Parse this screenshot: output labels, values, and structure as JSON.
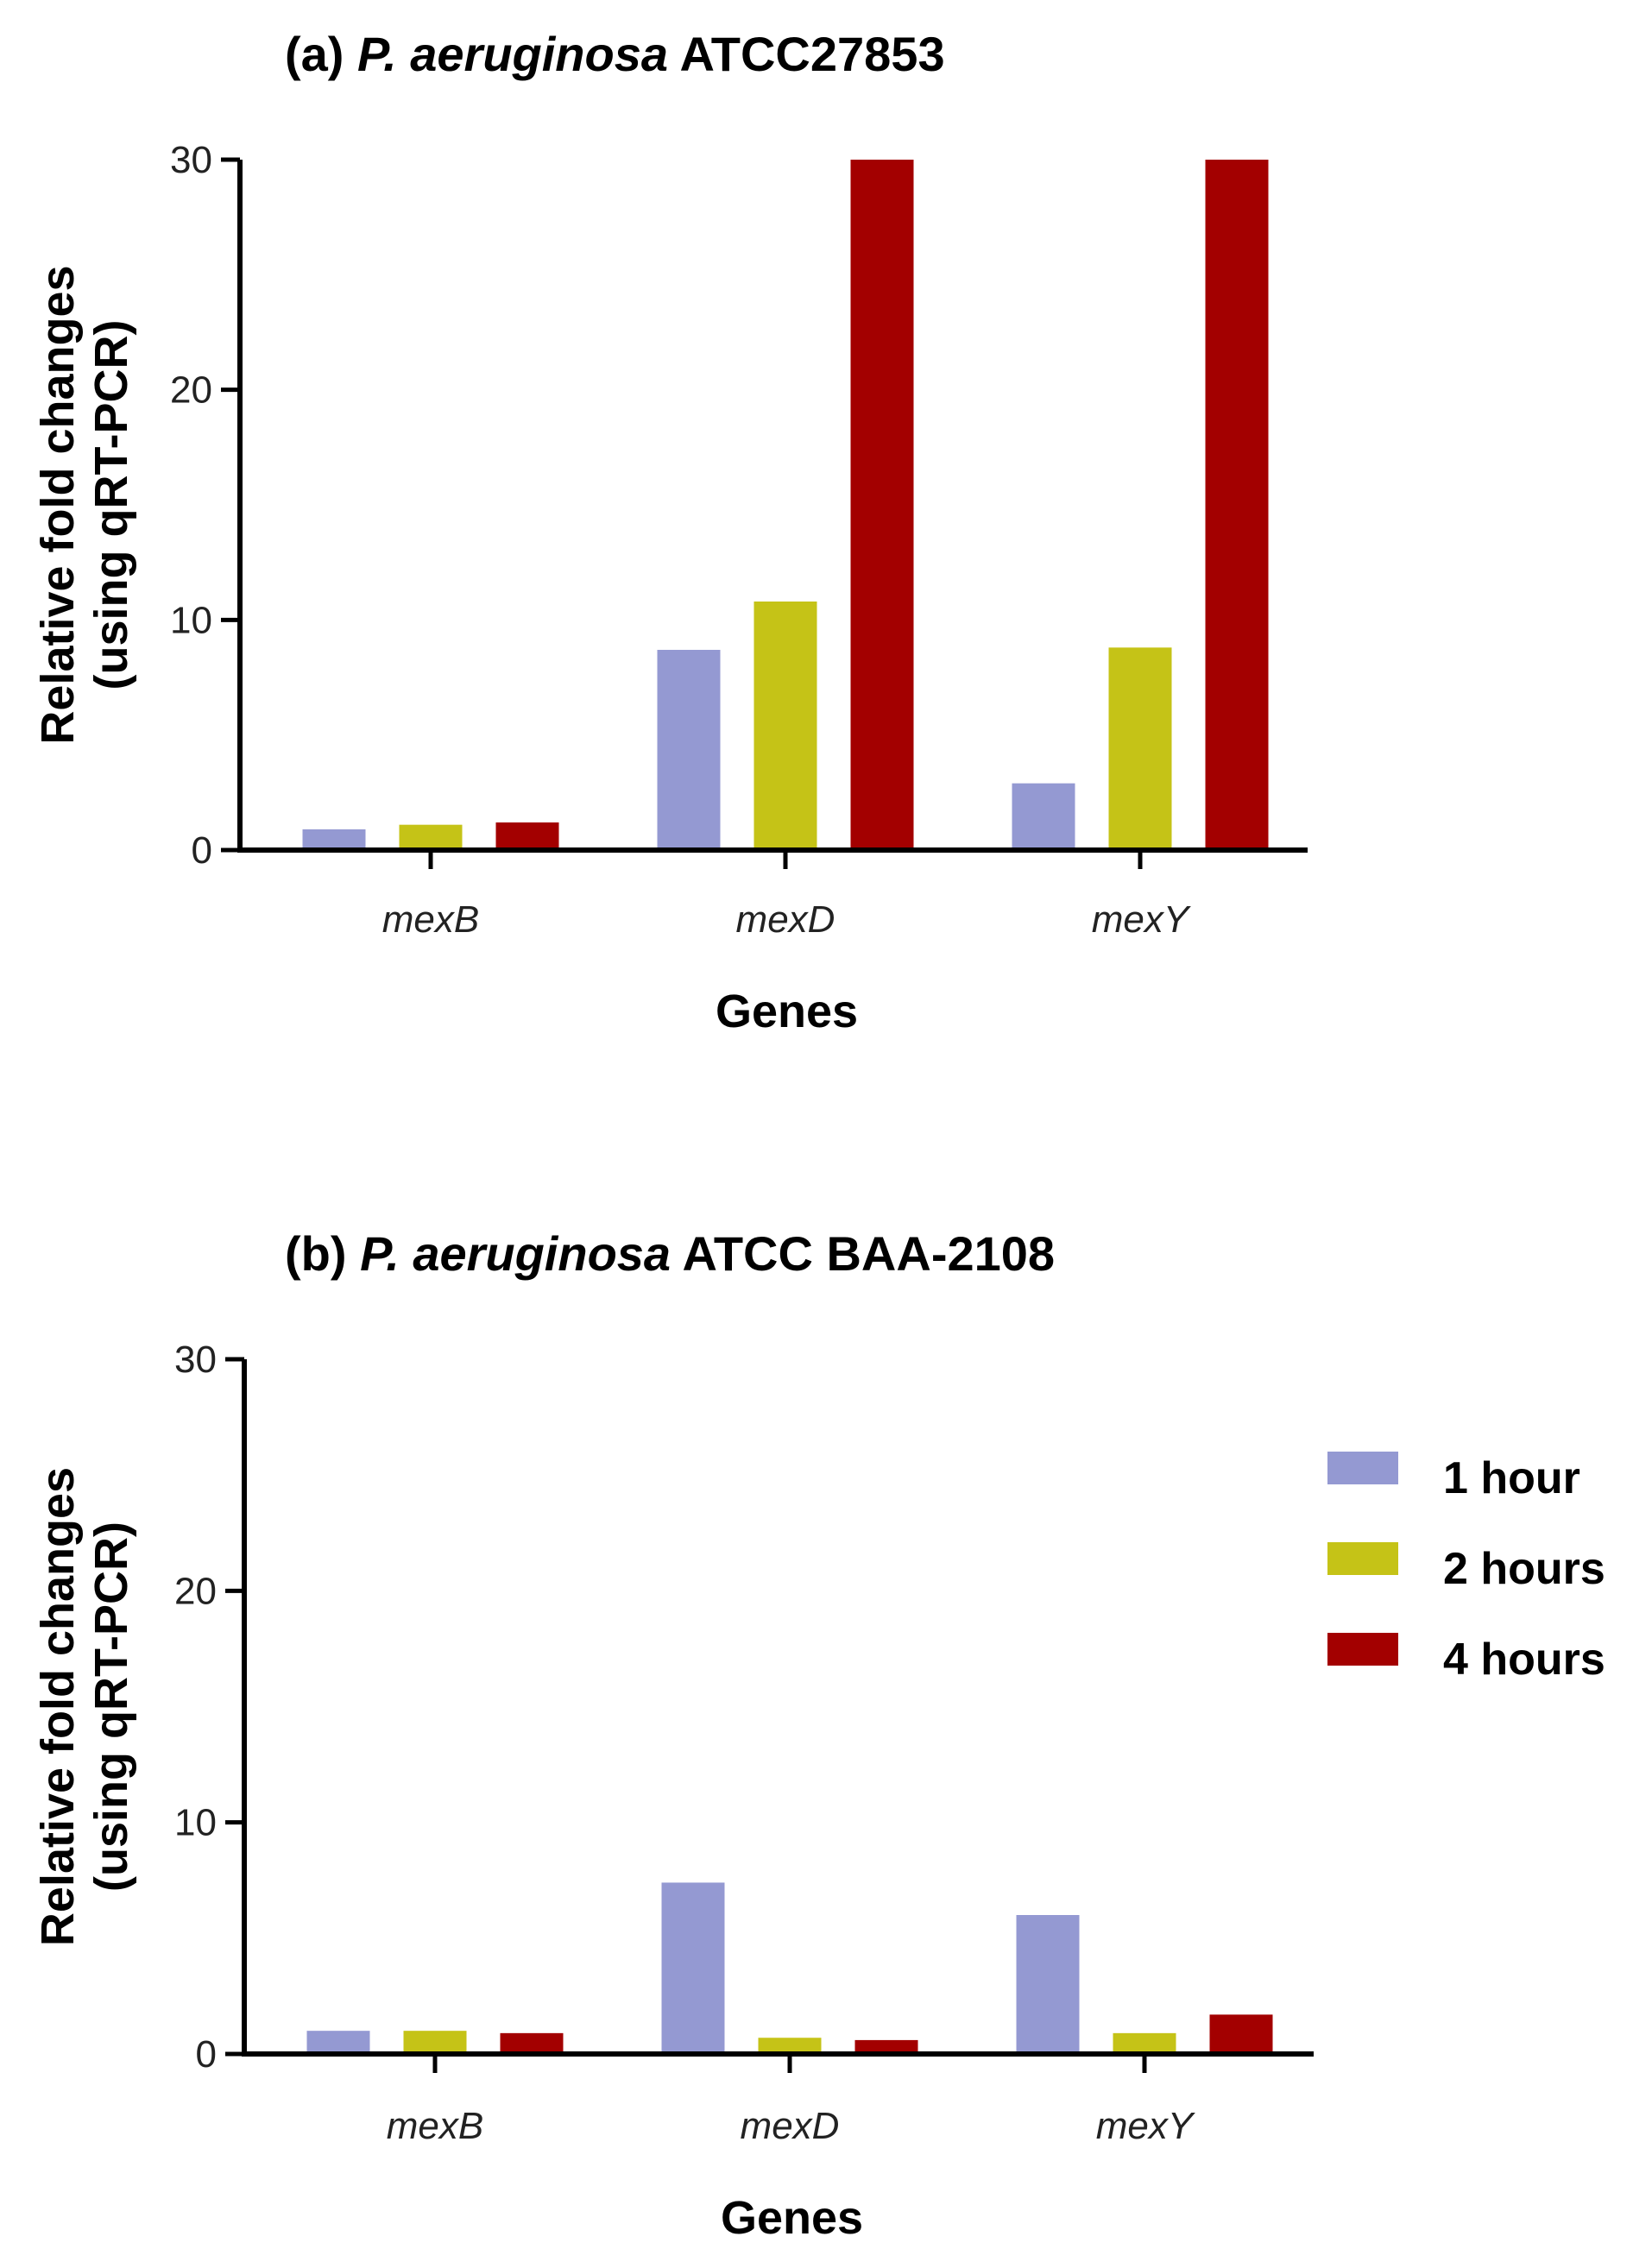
{
  "colors": {
    "1 hour": "#9499d2",
    "2 hours": "#c5c317",
    "4 hours": "#a30000"
  },
  "legend": [
    "1 hour",
    "2 hours",
    "4 hours"
  ],
  "chart_data": [
    {
      "type": "bar",
      "title_prefix": "(a)",
      "title_italic": "P. aeruginosa",
      "title_suffix": "ATCC27853",
      "title": "(a) P. aeruginosa ATCC27853",
      "xlabel": "Genes",
      "ylabel": "Relative fold changes\n(using qRT-PCR)",
      "ylabel_line1": "Relative fold changes",
      "ylabel_line2": "(using qRT-PCR)",
      "ylim": [
        0,
        30
      ],
      "yticks": [
        0,
        10,
        20,
        30
      ],
      "categories": [
        "mexB",
        "mexD",
        "mexY"
      ],
      "series": [
        {
          "name": "1 hour",
          "values": [
            0.9,
            8.7,
            2.9
          ]
        },
        {
          "name": "2 hours",
          "values": [
            1.1,
            10.8,
            8.8
          ]
        },
        {
          "name": "4 hours",
          "values": [
            1.2,
            30,
            30
          ]
        }
      ]
    },
    {
      "type": "bar",
      "title_prefix": "(b)",
      "title_italic": "P. aeruginosa",
      "title_suffix": "ATCC BAA-2108",
      "title": "(b) P. aeruginosa ATCC BAA-2108",
      "xlabel": "Genes",
      "ylabel": "Relative fold changes\n(using qRT-PCR)",
      "ylabel_line1": "Relative fold changes",
      "ylabel_line2": "(using qRT-PCR)",
      "ylim": [
        0,
        30
      ],
      "yticks": [
        0,
        10,
        20,
        30
      ],
      "categories": [
        "mexB",
        "mexD",
        "mexY"
      ],
      "series": [
        {
          "name": "1 hour",
          "values": [
            1.0,
            7.4,
            6.0
          ]
        },
        {
          "name": "2 hours",
          "values": [
            1.0,
            0.7,
            0.9
          ]
        },
        {
          "name": "4 hours",
          "values": [
            0.9,
            0.6,
            1.7
          ]
        }
      ]
    }
  ]
}
